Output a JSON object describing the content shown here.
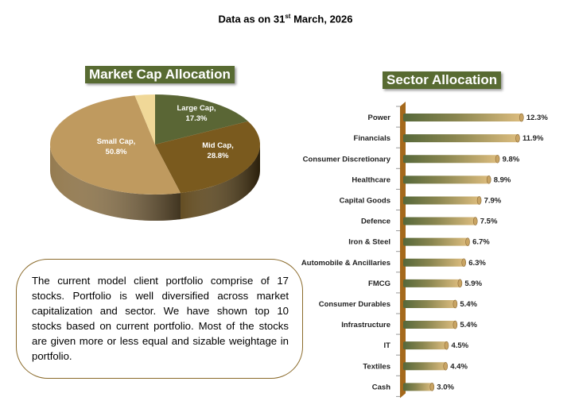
{
  "header": {
    "text": "Data as on 31",
    "sup": "st",
    "rest": " March, 2026"
  },
  "note": "The current model client portfolio comprise of 17 stocks. Portfolio is well diversified across market capitalization and sector. We have shown top 10 stocks based on current portfolio. Most of the stocks are given more or less equal and sizable weightage  in portfolio.",
  "chart_data": [
    {
      "type": "pie",
      "title": "Market Cap Allocation",
      "slices": [
        {
          "label": "Large Cap,",
          "value": 17.3,
          "value_label": "17.3%",
          "color": "#5a6635"
        },
        {
          "label": "Mid Cap,",
          "value": 28.8,
          "value_label": "28.8%",
          "color": "#7a5a1e"
        },
        {
          "label": "Small Cap,",
          "value": 50.8,
          "value_label": "50.8%",
          "color": "#bf9a5f"
        },
        {
          "label": "",
          "value": 3.1,
          "value_label": "",
          "color": "#f0d898"
        }
      ]
    },
    {
      "type": "bar",
      "orientation": "horizontal",
      "title": "Sector Allocation",
      "categories": [
        "Power",
        "Financials",
        "Consumer Discretionary",
        "Healthcare",
        "Capital Goods",
        "Defence",
        "Iron & Steel",
        "Automobile & Ancillaries",
        "FMCG",
        "Consumer Durables",
        "Infrastructure",
        "IT",
        "Textiles",
        "Cash"
      ],
      "values": [
        12.3,
        11.9,
        9.8,
        8.9,
        7.9,
        7.5,
        6.7,
        6.3,
        5.9,
        5.4,
        5.4,
        4.5,
        4.4,
        3.0
      ],
      "value_labels": [
        "12.3%",
        "11.9%",
        "9.8%",
        "8.9%",
        "7.9%",
        "7.5%",
        "6.7%",
        "6.3%",
        "5.9%",
        "5.4%",
        "5.4%",
        "4.5%",
        "4.4%",
        "3.0%"
      ],
      "colors": {
        "bar_start": "#56683a",
        "bar_end": "#dcbc7e",
        "axis": "#a5691c"
      }
    }
  ]
}
